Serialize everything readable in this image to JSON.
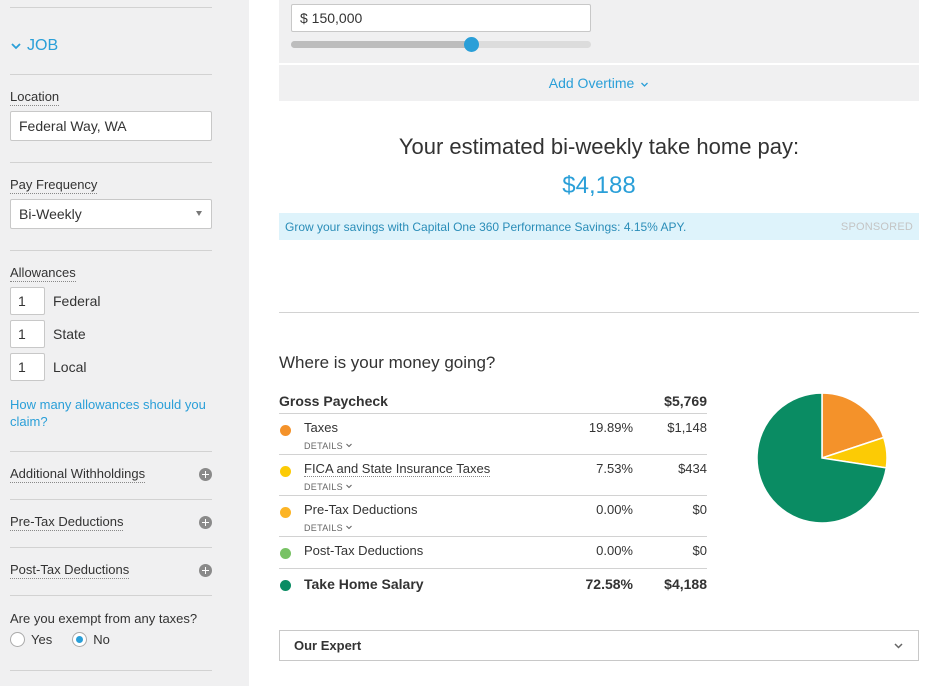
{
  "sidebar": {
    "job_heading": "JOB",
    "location_label": "Location",
    "location_value": "Federal Way, WA",
    "pay_frequency_label": "Pay Frequency",
    "pay_frequency_value": "Bi-Weekly",
    "allowances_label": "Allowances",
    "allowances": [
      {
        "value": "1",
        "name": "Federal"
      },
      {
        "value": "1",
        "name": "State"
      },
      {
        "value": "1",
        "name": "Local"
      }
    ],
    "allowances_link": "How many allowances should you claim?",
    "additional_withholdings": "Additional Withholdings",
    "pretax_deductions": "Pre-Tax Deductions",
    "posttax_deductions": "Post-Tax Deductions",
    "exempt_question": "Are you exempt from any taxes?",
    "exempt_yes": "Yes",
    "exempt_no": "No",
    "exempt_selected": "No"
  },
  "salary": {
    "value": "$ 150,000",
    "slider_fraction": 0.6,
    "add_overtime": "Add Overtime"
  },
  "estimate": {
    "title": "Your estimated bi-weekly take home pay:",
    "value": "$4,188"
  },
  "promo": {
    "message": "Grow your savings with Capital One 360 Performance Savings: 4.15% APY.",
    "sponsored": "SPONSORED"
  },
  "breakdown": {
    "title": "Where is your money going?",
    "gross_label": "Gross Paycheck",
    "gross_value": "$5,769",
    "details_label": "DETAILS",
    "rows": [
      {
        "name": "Taxes",
        "pct": "19.89%",
        "amount": "$1,148",
        "color": "#f4922a"
      },
      {
        "name": "FICA and State Insurance Taxes",
        "pct": "7.53%",
        "amount": "$434",
        "color": "#fccb05"
      },
      {
        "name": "Pre-Tax Deductions",
        "pct": "0.00%",
        "amount": "$0",
        "color": "#fcb425"
      },
      {
        "name": "Post-Tax Deductions",
        "pct": "0.00%",
        "amount": "$0",
        "color": "#78c264"
      }
    ],
    "total": {
      "name": "Take Home Salary",
      "pct": "72.58%",
      "amount": "$4,188",
      "color": "#0a8c63"
    }
  },
  "chart_data": {
    "type": "pie",
    "categories": [
      "Taxes",
      "FICA and State Insurance Taxes",
      "Pre-Tax Deductions",
      "Post-Tax Deductions",
      "Take Home Salary"
    ],
    "values": [
      19.89,
      7.53,
      0.0,
      0.0,
      72.58
    ],
    "colors": [
      "#f4922a",
      "#fccb05",
      "#fcb425",
      "#78c264",
      "#0a8c63"
    ]
  },
  "expert": {
    "label": "Our Expert"
  },
  "colors": {
    "accent": "#2a9fd8",
    "sidebar_bg": "#f0f0f1",
    "promo_bg": "#def3fb"
  }
}
